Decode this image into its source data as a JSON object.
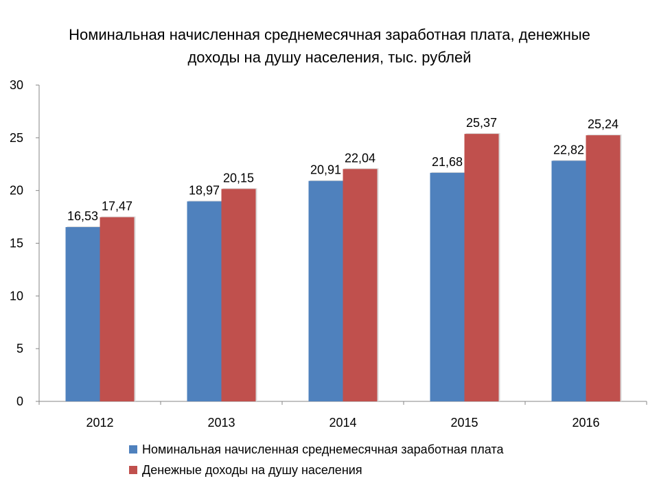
{
  "chart_data": {
    "type": "bar",
    "title_lines": [
      "Номинальная  начисленная  среднемесячная заработная плата, денежные",
      "доходы на душу населения, тыс. рублей"
    ],
    "categories": [
      "2012",
      "2013",
      "2014",
      "2015",
      "2016"
    ],
    "series": [
      {
        "name": "Номинальная начисленная среднемесячная заработная плата",
        "values": [
          16.53,
          18.97,
          20.91,
          21.68,
          22.82
        ],
        "labels": [
          "16,53",
          "18,97",
          "20,91",
          "21,68",
          "22,82"
        ],
        "color": "#4F81BD"
      },
      {
        "name": "Денежные доходы на душу населения",
        "values": [
          17.47,
          20.15,
          22.04,
          25.37,
          25.24
        ],
        "labels": [
          "17,47",
          "20,15",
          "22,04",
          "25,37",
          "25,24"
        ],
        "color": "#C0504D"
      }
    ],
    "ylim": [
      0,
      30
    ],
    "yticks": [
      0,
      5,
      10,
      15,
      20,
      25,
      30
    ],
    "xlabel": "",
    "ylabel": "",
    "grid": false,
    "legend_position": "bottom"
  }
}
